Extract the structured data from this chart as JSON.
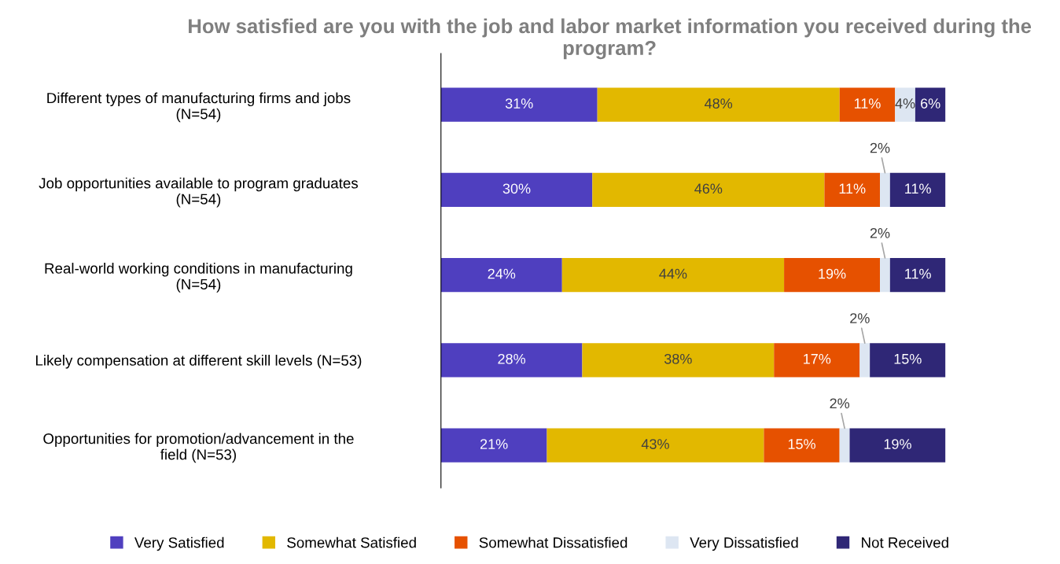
{
  "chart_data": {
    "type": "bar",
    "orientation": "horizontal",
    "stacked": true,
    "legend": "bottom",
    "grid": false,
    "title": "How satisfied are you with the job and labor market information you received during the program?",
    "categories": [
      "Different types of manufacturing firms and jobs\n(N=54)",
      "Job opportunities available to program graduates\n(N=54)",
      "Real-world working conditions in manufacturing\n(N=54)",
      "Likely compensation at different skill levels (N=53)",
      "Opportunities for promotion/advancement in the\nfield (N=53)"
    ],
    "series": [
      {
        "name": "Very Satisfied",
        "color": "#4f3fbf",
        "values": [
          31,
          30,
          24,
          28,
          21
        ],
        "value_labels": [
          "31%",
          "30%",
          "24%",
          "28%",
          "21%"
        ]
      },
      {
        "name": "Somewhat Satisfied",
        "color": "#e2b800",
        "values": [
          48,
          46,
          44,
          38,
          43
        ],
        "value_labels": [
          "48%",
          "46%",
          "44%",
          "38%",
          "43%"
        ]
      },
      {
        "name": "Somewhat Dissatisfied",
        "color": "#e65100",
        "values": [
          11,
          11,
          19,
          17,
          15
        ],
        "value_labels": [
          "11%",
          "11%",
          "19%",
          "17%",
          "15%"
        ]
      },
      {
        "name": "Very Dissatisfied",
        "color": "#dde6f2",
        "values": [
          4,
          2,
          2,
          2,
          2
        ],
        "value_labels": [
          "4%",
          "2%",
          "2%",
          "2%",
          "2%"
        ]
      },
      {
        "name": "Not Received",
        "color": "#2f2776",
        "values": [
          6,
          11,
          11,
          15,
          19
        ],
        "value_labels": [
          "6%",
          "11%",
          "11%",
          "15%",
          "19%"
        ]
      }
    ]
  }
}
